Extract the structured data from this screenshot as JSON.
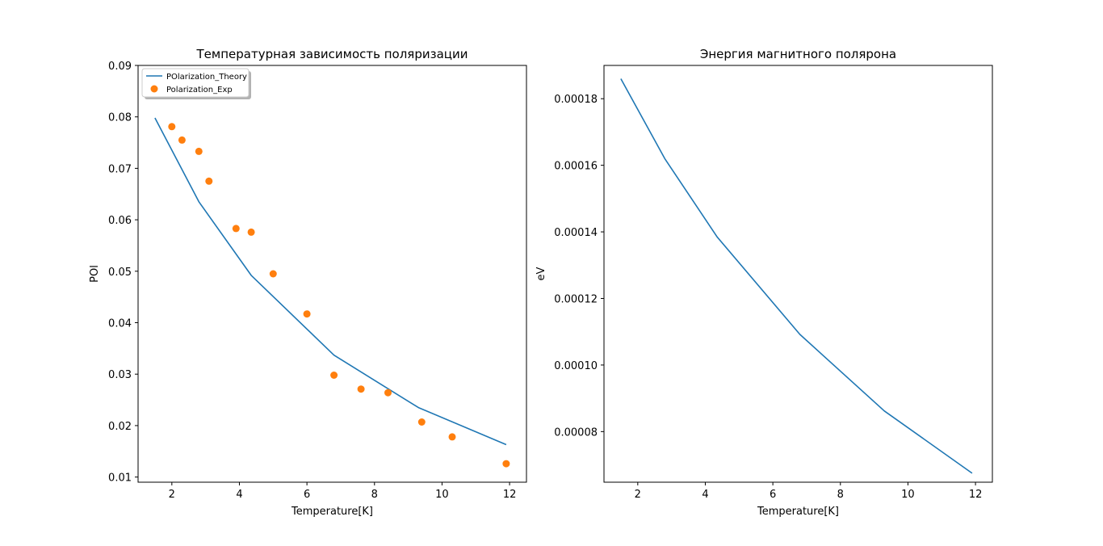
{
  "chart_data": [
    {
      "type": "line",
      "title": "Температурная зависимость поляризации",
      "xlabel": "Temperature[K]",
      "ylabel": "POl",
      "xlim": [
        1.0,
        12.5
      ],
      "ylim": [
        0.009,
        0.09
      ],
      "xticks": [
        "2",
        "4",
        "6",
        "8",
        "10",
        "12"
      ],
      "yticks": [
        "0.01",
        "0.02",
        "0.03",
        "0.04",
        "0.05",
        "0.06",
        "0.07",
        "0.08",
        "0.09"
      ],
      "grid": false,
      "legend": "top-left",
      "series": [
        {
          "name": "POlarization_Theory",
          "kind": "line",
          "color": "#1f77b4",
          "x": [
            1.5,
            2.8,
            4.35,
            6.8,
            9.3,
            11.9
          ],
          "y": [
            0.0798,
            0.0635,
            0.0492,
            0.0337,
            0.0235,
            0.0163
          ]
        },
        {
          "name": "Polarization_Exp",
          "kind": "scatter",
          "color": "#ff7f0e",
          "x": [
            2.0,
            2.3,
            2.8,
            3.1,
            3.9,
            4.35,
            5.0,
            6.0,
            6.8,
            7.6,
            8.4,
            9.4,
            10.3,
            11.9
          ],
          "y": [
            0.0781,
            0.0755,
            0.0733,
            0.0675,
            0.0583,
            0.0576,
            0.0495,
            0.0417,
            0.0298,
            0.0271,
            0.0264,
            0.0207,
            0.0178,
            0.0126
          ]
        }
      ]
    },
    {
      "type": "line",
      "title": "Энергия магнитного полярона",
      "xlabel": "Temperature[K]",
      "ylabel": "eV",
      "xlim": [
        1.0,
        12.5
      ],
      "ylim": [
        6.48e-05,
        0.00019
      ],
      "xticks": [
        "2",
        "4",
        "6",
        "8",
        "10",
        "12"
      ],
      "yticks": [
        "0.00008",
        "0.00010",
        "0.00012",
        "0.00014",
        "0.00016",
        "0.00018"
      ],
      "grid": false,
      "series": [
        {
          "kind": "line",
          "color": "#1f77b4",
          "x": [
            1.5,
            2.8,
            4.35,
            6.8,
            9.3,
            11.9
          ],
          "y": [
            0.000186,
            0.000162,
            0.0001385,
            0.0001092,
            8.62e-05,
            6.75e-05
          ]
        }
      ]
    }
  ]
}
